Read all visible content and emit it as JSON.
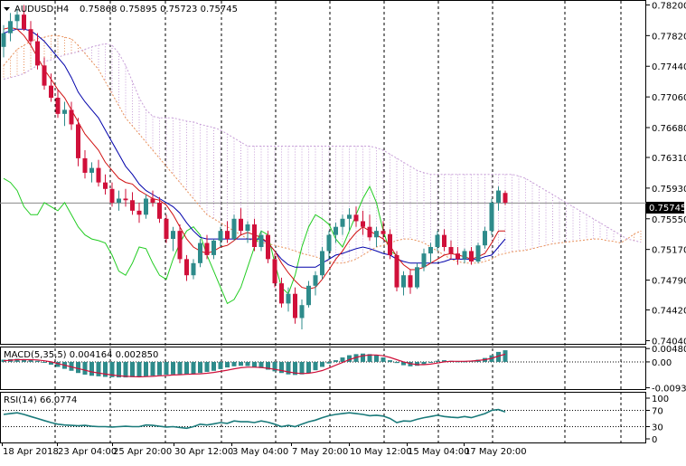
{
  "chart_data": {
    "type": "candlestick",
    "symbol_title": "AUDUSD,H4",
    "ohlc_readout": "0.75868 0.75895 0.75723 0.75745",
    "current_price_label": "0.75745",
    "current_price": 0.75745,
    "price_axis": {
      "ylim": [
        0.74,
        0.7825
      ],
      "tick_labels": [
        "0.78200",
        "0.77820",
        "0.77440",
        "0.77060",
        "0.76680",
        "0.76310",
        "0.75930",
        "0.75550",
        "0.75170",
        "0.74790",
        "0.74420",
        "0.74040"
      ],
      "tick_values": [
        0.782,
        0.7782,
        0.7744,
        0.7706,
        0.7668,
        0.7631,
        0.7593,
        0.7555,
        0.7517,
        0.7479,
        0.7442,
        0.7404
      ]
    },
    "time_axis": {
      "labels": [
        "18 Apr 2018",
        "23 Apr 04:00",
        "25 Apr 20:00",
        "30 Apr 12:00",
        "3 May 04:00",
        "7 May 20:00",
        "10 May 12:00",
        "15 May 04:00",
        "17 May 20:00"
      ]
    },
    "colors": {
      "bull": "#2e8b8b",
      "bear": "#d0103a",
      "tenkan": "#d01010",
      "kijun": "#0000aa",
      "chikou": "#22cc22",
      "span_a": "#e8905a",
      "span_b": "#c8a0d8",
      "macd_hist": "#2e8b8b",
      "macd_signal": "#d0103a",
      "rsi": "#1a7a7a",
      "grid": "#000000"
    },
    "candles": [
      [
        0.7768,
        0.7795,
        0.7755,
        0.7785
      ],
      [
        0.7785,
        0.781,
        0.7775,
        0.78
      ],
      [
        0.78,
        0.7815,
        0.779,
        0.7808
      ],
      [
        0.7808,
        0.782,
        0.7788,
        0.779
      ],
      [
        0.779,
        0.78,
        0.777,
        0.7775
      ],
      [
        0.7775,
        0.7785,
        0.774,
        0.7745
      ],
      [
        0.7745,
        0.7755,
        0.7715,
        0.772
      ],
      [
        0.772,
        0.7735,
        0.77,
        0.7705
      ],
      [
        0.7705,
        0.7715,
        0.768,
        0.7685
      ],
      [
        0.7685,
        0.77,
        0.767,
        0.769
      ],
      [
        0.769,
        0.77,
        0.7665,
        0.7672
      ],
      [
        0.7672,
        0.768,
        0.762,
        0.763
      ],
      [
        0.763,
        0.764,
        0.7605,
        0.7612
      ],
      [
        0.7612,
        0.7625,
        0.76,
        0.7618
      ],
      [
        0.7618,
        0.7628,
        0.7595,
        0.76
      ],
      [
        0.76,
        0.761,
        0.7585,
        0.7592
      ],
      [
        0.7592,
        0.76,
        0.757,
        0.7575
      ],
      [
        0.7575,
        0.759,
        0.7565,
        0.758
      ],
      [
        0.758,
        0.7592,
        0.757,
        0.7578
      ],
      [
        0.7578,
        0.7588,
        0.756,
        0.7565
      ],
      [
        0.7565,
        0.7575,
        0.755,
        0.756
      ],
      [
        0.756,
        0.7585,
        0.7555,
        0.758
      ],
      [
        0.758,
        0.759,
        0.757,
        0.7575
      ],
      [
        0.7575,
        0.7582,
        0.755,
        0.7555
      ],
      [
        0.7555,
        0.756,
        0.7525,
        0.753
      ],
      [
        0.753,
        0.7545,
        0.7515,
        0.754
      ],
      [
        0.754,
        0.7548,
        0.75,
        0.7505
      ],
      [
        0.7505,
        0.751,
        0.7478,
        0.7485
      ],
      [
        0.7485,
        0.7505,
        0.748,
        0.75
      ],
      [
        0.75,
        0.753,
        0.7495,
        0.7525
      ],
      [
        0.7525,
        0.7535,
        0.7505,
        0.751
      ],
      [
        0.751,
        0.753,
        0.7505,
        0.7528
      ],
      [
        0.7528,
        0.7545,
        0.752,
        0.754
      ],
      [
        0.754,
        0.7552,
        0.7525,
        0.753
      ],
      [
        0.753,
        0.756,
        0.7528,
        0.7555
      ],
      [
        0.7555,
        0.7568,
        0.7535,
        0.754
      ],
      [
        0.754,
        0.7552,
        0.7525,
        0.7548
      ],
      [
        0.7548,
        0.7555,
        0.7515,
        0.752
      ],
      [
        0.752,
        0.754,
        0.7515,
        0.7535
      ],
      [
        0.7535,
        0.754,
        0.75,
        0.7505
      ],
      [
        0.7505,
        0.7512,
        0.747,
        0.7475
      ],
      [
        0.7475,
        0.7482,
        0.7445,
        0.745
      ],
      [
        0.745,
        0.747,
        0.744,
        0.7462
      ],
      [
        0.7462,
        0.747,
        0.7425,
        0.7432
      ],
      [
        0.7432,
        0.7455,
        0.7418,
        0.7448
      ],
      [
        0.7448,
        0.7478,
        0.7445,
        0.7472
      ],
      [
        0.7472,
        0.749,
        0.746,
        0.7485
      ],
      [
        0.7485,
        0.752,
        0.748,
        0.7515
      ],
      [
        0.7515,
        0.754,
        0.7505,
        0.7535
      ],
      [
        0.7535,
        0.755,
        0.7525,
        0.7545
      ],
      [
        0.7545,
        0.756,
        0.7535,
        0.7555
      ],
      [
        0.7555,
        0.7568,
        0.754,
        0.756
      ],
      [
        0.756,
        0.757,
        0.7545,
        0.7552
      ],
      [
        0.7552,
        0.7565,
        0.7535,
        0.7545
      ],
      [
        0.7545,
        0.756,
        0.7528,
        0.7532
      ],
      [
        0.7532,
        0.7545,
        0.752,
        0.754
      ],
      [
        0.754,
        0.7552,
        0.753,
        0.7536
      ],
      [
        0.7536,
        0.7542,
        0.7505,
        0.751
      ],
      [
        0.751,
        0.7515,
        0.7465,
        0.747
      ],
      [
        0.747,
        0.749,
        0.746,
        0.7485
      ],
      [
        0.7485,
        0.7492,
        0.7462,
        0.747
      ],
      [
        0.747,
        0.75,
        0.7468,
        0.7495
      ],
      [
        0.7495,
        0.7518,
        0.749,
        0.7512
      ],
      [
        0.7512,
        0.7525,
        0.75,
        0.752
      ],
      [
        0.752,
        0.754,
        0.7515,
        0.7535
      ],
      [
        0.7535,
        0.7542,
        0.7515,
        0.752
      ],
      [
        0.752,
        0.7528,
        0.7505,
        0.7512
      ],
      [
        0.7512,
        0.752,
        0.7498,
        0.7505
      ],
      [
        0.7505,
        0.7518,
        0.75,
        0.7515
      ],
      [
        0.7515,
        0.752,
        0.7498,
        0.7502
      ],
      [
        0.7502,
        0.7525,
        0.75,
        0.7522
      ],
      [
        0.7522,
        0.7545,
        0.7518,
        0.754
      ],
      [
        0.754,
        0.758,
        0.7535,
        0.7575
      ],
      [
        0.7575,
        0.7595,
        0.7565,
        0.759
      ],
      [
        0.7587,
        0.759,
        0.7572,
        0.7575
      ]
    ],
    "tenkan": [
      0.779,
      0.7792,
      0.779,
      0.7782,
      0.777,
      0.7755,
      0.774,
      0.7728,
      0.7715,
      0.7705,
      0.769,
      0.7675,
      0.766,
      0.765,
      0.764,
      0.7625,
      0.7615,
      0.7605,
      0.76,
      0.7598,
      0.759,
      0.7585,
      0.758,
      0.7578,
      0.7572,
      0.756,
      0.7545,
      0.753,
      0.752,
      0.7515,
      0.7512,
      0.7515,
      0.752,
      0.7522,
      0.7528,
      0.7535,
      0.7538,
      0.7535,
      0.7532,
      0.7525,
      0.7515,
      0.75,
      0.7488,
      0.7478,
      0.747,
      0.7468,
      0.747,
      0.748,
      0.7492,
      0.7505,
      0.7515,
      0.7528,
      0.7538,
      0.7545,
      0.754,
      0.7535,
      0.753,
      0.7522,
      0.7508,
      0.7498,
      0.7492,
      0.7492,
      0.7495,
      0.75,
      0.7505,
      0.751,
      0.7512,
      0.751,
      0.7508,
      0.7505,
      0.7508,
      0.7512,
      0.7525,
      0.754,
      0.754
    ],
    "kijun": [
      0.7785,
      0.7788,
      0.779,
      0.779,
      0.7788,
      0.7782,
      0.7775,
      0.7765,
      0.7755,
      0.7745,
      0.773,
      0.7712,
      0.77,
      0.769,
      0.768,
      0.7665,
      0.765,
      0.7635,
      0.762,
      0.761,
      0.7598,
      0.759,
      0.7585,
      0.758,
      0.7575,
      0.757,
      0.7562,
      0.755,
      0.754,
      0.7532,
      0.753,
      0.753,
      0.753,
      0.753,
      0.753,
      0.753,
      0.753,
      0.753,
      0.753,
      0.7525,
      0.7515,
      0.7505,
      0.7498,
      0.7495,
      0.7495,
      0.7495,
      0.7495,
      0.75,
      0.7505,
      0.751,
      0.7512,
      0.7515,
      0.7518,
      0.752,
      0.7518,
      0.7515,
      0.7512,
      0.751,
      0.7505,
      0.7502,
      0.75,
      0.75,
      0.75,
      0.75,
      0.75,
      0.7502,
      0.7505,
      0.7505,
      0.7505,
      0.7505,
      0.7505,
      0.7508,
      0.751,
      0.752,
      0.753
    ],
    "chikou": [
      0.7605,
      0.76,
      0.759,
      0.757,
      0.756,
      0.756,
      0.7575,
      0.757,
      0.7565,
      0.7575,
      0.756,
      0.7545,
      0.7535,
      0.753,
      0.7528,
      0.7525,
      0.751,
      0.749,
      0.7485,
      0.75,
      0.752,
      0.7518,
      0.75,
      0.7485,
      0.748,
      0.7505,
      0.7525,
      0.754,
      0.7545,
      0.7535,
      0.751,
      0.749,
      0.747,
      0.745,
      0.7455,
      0.747,
      0.7495,
      0.752,
      0.754,
      0.7535,
      0.75,
      0.747,
      0.7462,
      0.7485,
      0.752,
      0.7545,
      0.756,
      0.7555,
      0.7548,
      0.753,
      0.752,
      0.754,
      0.756,
      0.758,
      0.7595,
      0.7575,
      0.754,
      0.7515,
      0.751
    ],
    "cloud_span_a": [
      0.7745,
      0.7755,
      0.7765,
      0.777,
      0.7775,
      0.7778,
      0.778,
      0.7782,
      0.7782,
      0.778,
      0.7778,
      0.777,
      0.776,
      0.775,
      0.774,
      0.7725,
      0.771,
      0.7695,
      0.768,
      0.767,
      0.766,
      0.765,
      0.764,
      0.763,
      0.762,
      0.761,
      0.76,
      0.759,
      0.758,
      0.757,
      0.756,
      0.7555,
      0.755,
      0.7545,
      0.754,
      0.7535,
      0.753,
      0.7528,
      0.7526,
      0.7524,
      0.7522,
      0.752,
      0.7518,
      0.7515,
      0.7512,
      0.751,
      0.7508,
      0.7505,
      0.7502,
      0.75,
      0.75,
      0.7502,
      0.7505,
      0.751,
      0.7515,
      0.752,
      0.7522,
      0.7525,
      0.7528,
      0.753,
      0.753,
      0.7528,
      0.7525,
      0.752,
      0.7515,
      0.751,
      0.7505,
      0.7502,
      0.75,
      0.75,
      0.75,
      0.7502,
      0.7505,
      0.751,
      0.7512,
      0.7514,
      0.7515,
      0.7516,
      0.7518,
      0.752,
      0.7522,
      0.7524,
      0.7525,
      0.7526,
      0.7527,
      0.7528,
      0.7529,
      0.753,
      0.753,
      0.7528,
      0.7527,
      0.7525,
      0.753,
      0.7536,
      0.754
    ],
    "cloud_span_b": [
      0.7728,
      0.773,
      0.7732,
      0.7735,
      0.774,
      0.7745,
      0.775,
      0.7752,
      0.7755,
      0.7758,
      0.776,
      0.7762,
      0.7765,
      0.7768,
      0.777,
      0.7772,
      0.777,
      0.776,
      0.7745,
      0.7725,
      0.7705,
      0.769,
      0.7682,
      0.768,
      0.768,
      0.768,
      0.7678,
      0.7676,
      0.7675,
      0.7672,
      0.767,
      0.7668,
      0.7665,
      0.766,
      0.7655,
      0.765,
      0.7645,
      0.7645,
      0.7645,
      0.7645,
      0.7645,
      0.7645,
      0.7645,
      0.7645,
      0.7645,
      0.7645,
      0.7645,
      0.7645,
      0.7645,
      0.7645,
      0.7645,
      0.7645,
      0.7645,
      0.7645,
      0.7645,
      0.7643,
      0.764,
      0.7635,
      0.763,
      0.7625,
      0.762,
      0.7615,
      0.7612,
      0.761,
      0.761,
      0.761,
      0.761,
      0.761,
      0.761,
      0.761,
      0.761,
      0.761,
      0.761,
      0.761,
      0.761,
      0.761,
      0.7608,
      0.7605,
      0.76,
      0.7595,
      0.759,
      0.7585,
      0.758,
      0.7575,
      0.757,
      0.7565,
      0.756,
      0.7555,
      0.755,
      0.7545,
      0.754,
      0.7535,
      0.753,
      0.7528,
      0.7526
    ],
    "macd": {
      "title": "MACD(5,35,5) 0.004164 0.002850",
      "ylim": [
        -0.0098,
        0.0052
      ],
      "tick_labels": [
        "0.004807",
        "0.00",
        "-0.009326"
      ],
      "tick_values": [
        0.004807,
        0.0,
        -0.009326
      ],
      "histogram": [
        0.0008,
        0.001,
        0.0011,
        0.001,
        0.0008,
        0.0004,
        -0.0002,
        -0.001,
        -0.0018,
        -0.0025,
        -0.0032,
        -0.004,
        -0.0046,
        -0.005,
        -0.0052,
        -0.0054,
        -0.0055,
        -0.0056,
        -0.0056,
        -0.0055,
        -0.0054,
        -0.0052,
        -0.005,
        -0.0048,
        -0.0046,
        -0.0045,
        -0.0044,
        -0.0044,
        -0.0043,
        -0.004,
        -0.0036,
        -0.0032,
        -0.0026,
        -0.002,
        -0.0016,
        -0.0014,
        -0.0015,
        -0.0018,
        -0.0022,
        -0.0028,
        -0.0034,
        -0.004,
        -0.0045,
        -0.0047,
        -0.0045,
        -0.004,
        -0.003,
        -0.0018,
        -0.0006,
        0.0006,
        0.0016,
        0.0024,
        0.0028,
        0.003,
        0.0028,
        0.0024,
        0.0016,
        0.0006,
        -0.0004,
        -0.0012,
        -0.0016,
        -0.0014,
        -0.0008,
        -0.0002,
        0.0004,
        0.0006,
        0.0004,
        0.0002,
        0.0002,
        0.0004,
        0.0008,
        0.0014,
        0.0024,
        0.0036,
        0.0042
      ],
      "signal": [
        0.0004,
        0.0006,
        0.0008,
        0.0008,
        0.0008,
        0.0007,
        0.0004,
        0.0,
        -0.0006,
        -0.0012,
        -0.0018,
        -0.0024,
        -0.003,
        -0.0036,
        -0.004,
        -0.0044,
        -0.0047,
        -0.005,
        -0.0052,
        -0.0053,
        -0.0054,
        -0.0053,
        -0.0052,
        -0.005,
        -0.0049,
        -0.0047,
        -0.0046,
        -0.0045,
        -0.0044,
        -0.0043,
        -0.0041,
        -0.0038,
        -0.0034,
        -0.003,
        -0.0025,
        -0.0021,
        -0.0019,
        -0.0019,
        -0.002,
        -0.0023,
        -0.0027,
        -0.0031,
        -0.0036,
        -0.004,
        -0.0042,
        -0.0041,
        -0.0037,
        -0.0031,
        -0.0022,
        -0.0012,
        -0.0002,
        0.0008,
        0.0016,
        0.0022,
        0.0025,
        0.0025,
        0.0022,
        0.0016,
        0.0008,
        0.0,
        -0.0006,
        -0.001,
        -0.001,
        -0.0008,
        -0.0004,
        0.0,
        0.0002,
        0.0002,
        0.0002,
        0.0003,
        0.0005,
        0.0008,
        0.0013,
        0.0021,
        0.0028
      ]
    },
    "rsi": {
      "title": "RSI(14) 66.0774",
      "ylim": [
        0,
        100
      ],
      "tick_labels": [
        "100",
        "70",
        "30",
        "0"
      ],
      "tick_values": [
        100,
        70,
        30,
        0
      ],
      "levels": [
        70,
        30
      ],
      "values": [
        60,
        62,
        64,
        60,
        55,
        50,
        45,
        40,
        36,
        34,
        33,
        32,
        33,
        31,
        30,
        30,
        29,
        30,
        31,
        30,
        30,
        34,
        33,
        31,
        29,
        30,
        28,
        26,
        30,
        36,
        34,
        37,
        40,
        38,
        44,
        42,
        42,
        40,
        44,
        41,
        36,
        30,
        33,
        30,
        36,
        42,
        46,
        52,
        57,
        60,
        62,
        64,
        62,
        60,
        57,
        58,
        56,
        50,
        40,
        44,
        43,
        48,
        52,
        55,
        58,
        55,
        53,
        52,
        55,
        52,
        57,
        62,
        70,
        72,
        66.08
      ]
    }
  }
}
